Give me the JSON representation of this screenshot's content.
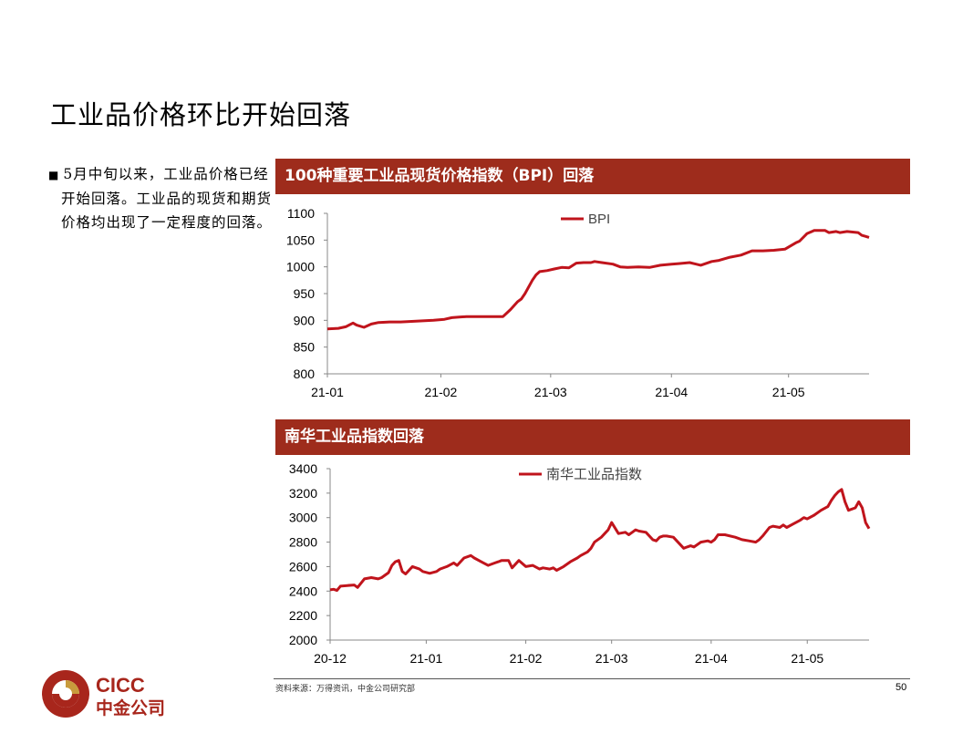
{
  "title": "工业品价格环比开始回落",
  "bullet": "5月中旬以来，工业品价格已经开始回落。工业品的现货和期货价格均出现了一定程度的回落。",
  "panel1": {
    "header": "100种重要工业品现货价格指数（BPI）回落"
  },
  "panel2": {
    "header": "南华工业品指数回落"
  },
  "source": "资料来源：万得资讯，中金公司研究部",
  "page_number": "50",
  "logo": {
    "text_en": "CICC",
    "text_cn": "中金公司"
  },
  "colors": {
    "header_bg": "#9e2c1c",
    "series": "#c0141c"
  },
  "chart_data": [
    {
      "type": "line",
      "title": "100种重要工业品现货价格指数（BPI）回落",
      "legend": [
        "BPI"
      ],
      "ylim": [
        800,
        1100
      ],
      "yticks": [
        800,
        850,
        900,
        950,
        1000,
        1050,
        1100
      ],
      "xlim": [
        0,
        148
      ],
      "xticks": [
        {
          "label": "21-01",
          "x": 0
        },
        {
          "label": "21-02",
          "x": 31
        },
        {
          "label": "21-03",
          "x": 61
        },
        {
          "label": "21-04",
          "x": 94
        },
        {
          "label": "21-05",
          "x": 126
        }
      ],
      "series": [
        {
          "name": "BPI",
          "x": [
            0,
            3,
            5,
            7,
            8,
            10,
            12,
            14,
            17,
            20,
            23,
            26,
            29,
            32,
            34,
            36,
            38,
            40,
            44,
            48,
            50,
            52,
            53,
            54,
            56,
            57,
            58,
            60,
            62,
            64,
            66,
            68,
            70,
            72,
            73,
            75,
            78,
            80,
            82,
            85,
            88,
            91,
            94,
            96,
            99,
            102,
            105,
            107,
            110,
            113,
            116,
            119,
            122,
            125,
            128,
            129,
            131,
            133,
            136,
            137,
            139,
            140,
            142,
            145,
            146,
            147,
            148
          ],
          "values": [
            884,
            885,
            888,
            895,
            891,
            887,
            893,
            896,
            897,
            897,
            898,
            899,
            900,
            902,
            905,
            906,
            907,
            907,
            907,
            907,
            920,
            935,
            940,
            950,
            975,
            985,
            991,
            993,
            996,
            999,
            998,
            1007,
            1008,
            1008,
            1010,
            1008,
            1005,
            1000,
            999,
            1000,
            999,
            1003,
            1005,
            1006,
            1008,
            1003,
            1010,
            1012,
            1018,
            1022,
            1030,
            1030,
            1031,
            1033,
            1045,
            1048,
            1062,
            1068,
            1068,
            1064,
            1066,
            1064,
            1066,
            1064,
            1059,
            1057,
            1055
          ]
        }
      ]
    },
    {
      "type": "line",
      "title": "南华工业品指数回落",
      "legend": [
        "南华工业品指数"
      ],
      "ylim": [
        2000,
        3400
      ],
      "yticks": [
        2000,
        2200,
        2400,
        2600,
        2800,
        3000,
        3200,
        3400
      ],
      "xlim": [
        0,
        157
      ],
      "xticks": [
        {
          "label": "20-12",
          "x": 0
        },
        {
          "label": "21-01",
          "x": 28
        },
        {
          "label": "21-02",
          "x": 57
        },
        {
          "label": "21-03",
          "x": 82
        },
        {
          "label": "21-04",
          "x": 111
        },
        {
          "label": "21-05",
          "x": 139
        }
      ],
      "series": [
        {
          "name": "南华工业品指数",
          "x": [
            0,
            1,
            2,
            3,
            5,
            7,
            8,
            10,
            12,
            14,
            15,
            17,
            18,
            19,
            20,
            21,
            22,
            24,
            26,
            27,
            29,
            31,
            32,
            34,
            36,
            37,
            39,
            41,
            42,
            44,
            46,
            48,
            49,
            50,
            52,
            53,
            55,
            57,
            59,
            61,
            62,
            64,
            65,
            66,
            68,
            70,
            72,
            73,
            75,
            76,
            77,
            78,
            79,
            80,
            81,
            82,
            84,
            86,
            87,
            88,
            89,
            90,
            92,
            94,
            95,
            96,
            97,
            98,
            100,
            103,
            104,
            105,
            106,
            108,
            110,
            111,
            112,
            113,
            115,
            118,
            120,
            122,
            124,
            125,
            126,
            128,
            129,
            131,
            132,
            133,
            135,
            137,
            138,
            139,
            141,
            143,
            145,
            146,
            147,
            148,
            149,
            150,
            151,
            153,
            154,
            155,
            156,
            157
          ],
          "values": [
            2410,
            2415,
            2405,
            2440,
            2445,
            2450,
            2430,
            2500,
            2510,
            2500,
            2510,
            2550,
            2610,
            2640,
            2650,
            2560,
            2540,
            2600,
            2580,
            2560,
            2545,
            2560,
            2580,
            2600,
            2630,
            2610,
            2670,
            2690,
            2670,
            2640,
            2610,
            2630,
            2640,
            2650,
            2650,
            2590,
            2650,
            2600,
            2610,
            2580,
            2590,
            2580,
            2590,
            2570,
            2600,
            2640,
            2670,
            2690,
            2720,
            2750,
            2800,
            2820,
            2840,
            2870,
            2900,
            2960,
            2870,
            2880,
            2860,
            2880,
            2900,
            2890,
            2880,
            2820,
            2810,
            2840,
            2850,
            2850,
            2840,
            2750,
            2760,
            2770,
            2760,
            2800,
            2810,
            2800,
            2820,
            2860,
            2860,
            2840,
            2820,
            2810,
            2800,
            2820,
            2850,
            2920,
            2930,
            2920,
            2940,
            2920,
            2950,
            2980,
            3000,
            2990,
            3020,
            3060,
            3090,
            3140,
            3180,
            3210,
            3230,
            3130,
            3060,
            3080,
            3130,
            3080,
            2960,
            2910
          ]
        }
      ]
    }
  ]
}
